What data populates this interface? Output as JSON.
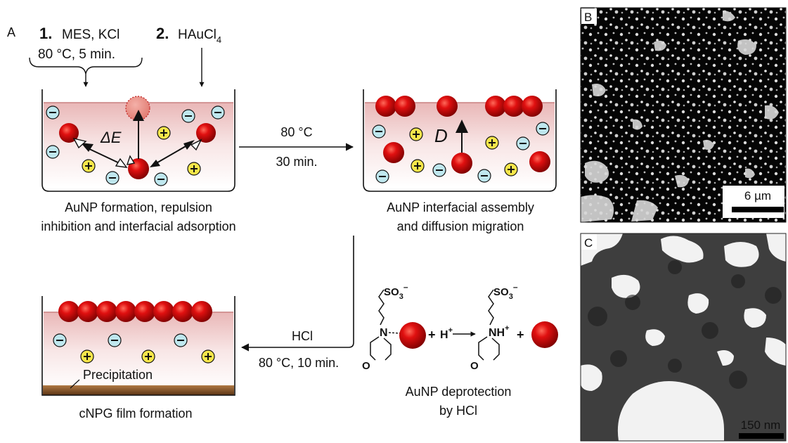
{
  "panel_a": {
    "label": "A",
    "step1_number": "1.",
    "step1_reagents": "MES, KCl",
    "step1_conditions": "80 °C, 5 min.",
    "step2_number": "2.",
    "step2_reagent": "HAuCl",
    "step2_subscript": "4",
    "energy_label": "ΔE",
    "diffusion_label": "D",
    "arrow1_top": "80 °C",
    "arrow1_bottom": "30 min.",
    "beaker1_caption_line1": "AuNP formation, repulsion",
    "beaker1_caption_line2": "inhibition and interfacial adsorption",
    "beaker2_caption_line1": "AuNP interfacial assembly",
    "beaker2_caption_line2": "and diffusion migration",
    "arrow2_top": "HCl",
    "arrow2_bottom": "80 °C, 10 min.",
    "precipitation_label": "Precipitation",
    "beaker3_caption": "cNPG film formation",
    "reaction_so3": "SO",
    "reaction_so3_sub": "3",
    "reaction_so3_sup": "–",
    "reaction_n": "N",
    "reaction_o": "O",
    "reaction_plus": "+",
    "reaction_h": "H",
    "reaction_hplus_sup": "+",
    "reaction_nh": "NH",
    "reaction_nh_sup": "+",
    "deprotection_line1": "AuNP deprotection",
    "deprotection_line2": "by HCl"
  },
  "panel_b": {
    "label": "B",
    "scale_bar": "6 µm"
  },
  "panel_c": {
    "label": "C",
    "scale_bar": "150 nm"
  },
  "colors": {
    "gold_np": "#cc0000",
    "liquid_gradient_top": "#e8b4b4",
    "sediment": "#7a4a1e",
    "anion_fill": "#bfe7ee",
    "cation_fill": "#f7e64a"
  }
}
